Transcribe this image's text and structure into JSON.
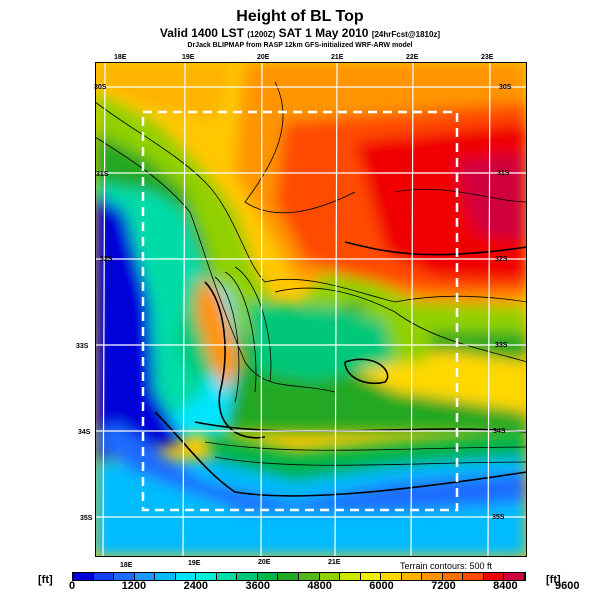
{
  "title": "Height of BL Top",
  "subtitle": "Valid 1400 LST",
  "subtitle_utc": "(1200Z)",
  "subtitle_date": "SAT 1 May 2010",
  "subtitle_fcst": "[24hrFcst@1810z]",
  "credit": "DrJack BLIPMAP from RASP 12km GFS-initialized WRF-ARW model",
  "lon_labels_top": [
    "18E",
    "19E",
    "20E",
    "21E",
    "22E",
    "23E"
  ],
  "lon_labels_bottom": [
    "18E",
    "19E",
    "20E",
    "21E"
  ],
  "lat_labels_left": [
    "30S",
    "31S",
    "32S",
    "33S",
    "34S",
    "35S"
  ],
  "lat_labels_right": [
    "30S",
    "31S",
    "32S",
    "33S",
    "34S",
    "35S"
  ],
  "terrain_note": "Terrain contours: 500 ft",
  "colorbar": {
    "unit_left": "[ft]",
    "unit_right": "[ft]",
    "labels": [
      "0",
      "1200",
      "2400",
      "3600",
      "4800",
      "6000",
      "7200",
      "8400",
      "9600"
    ],
    "colors": [
      "#0000d8",
      "#1440f0",
      "#1e6cff",
      "#1e96ff",
      "#00bcff",
      "#00e4ff",
      "#00f0d8",
      "#00dca8",
      "#00c878",
      "#00b448",
      "#20a820",
      "#50b818",
      "#90d000",
      "#c8e800",
      "#f0f000",
      "#ffd800",
      "#ffb400",
      "#ff9400",
      "#ff7000",
      "#ff4c00",
      "#f00000",
      "#d0003c"
    ]
  }
}
